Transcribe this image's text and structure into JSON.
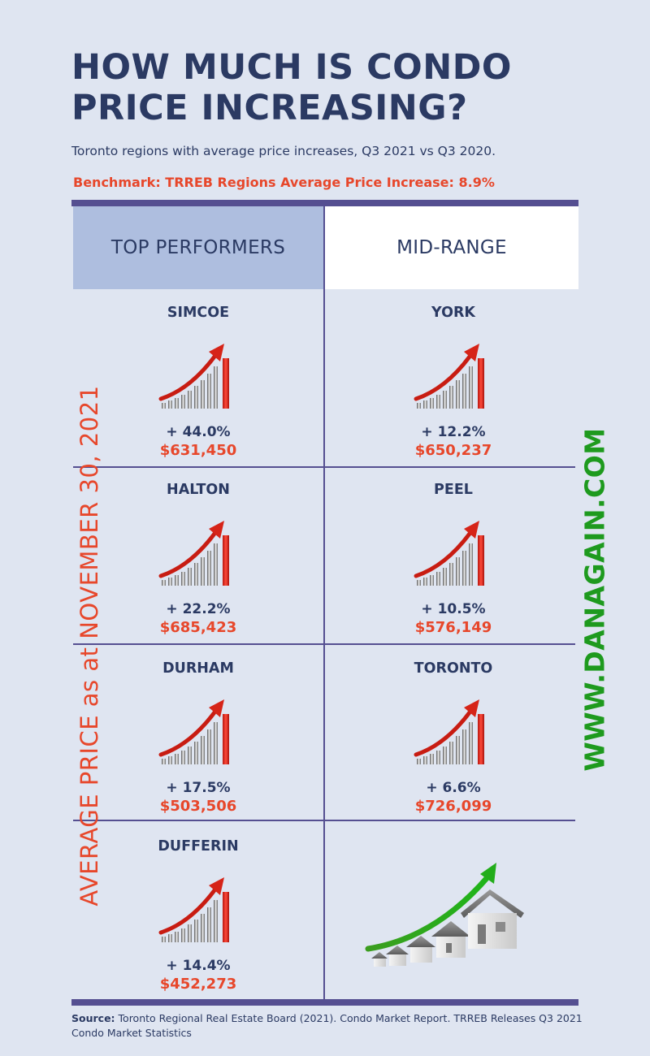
{
  "title": "HOW MUCH IS CONDO PRICE INCREASING?",
  "subtitle": "Toronto regions with average price increases, Q3 2021 vs Q3 2020.",
  "benchmark": "Benchmark: TRREB Regions Average Price Increase: 8.9%",
  "columns": {
    "left": "TOP PERFORMERS",
    "right": "MID-RANGE"
  },
  "side_label": "AVERAGE PRICE as at NOVEMBER 30, 2021",
  "website": "WWW.DANAGAIN.COM",
  "top_performers": [
    {
      "region": "SIMCOE",
      "change": "+ 44.0%",
      "price": "$631,450"
    },
    {
      "region": "HALTON",
      "change": "+ 22.2%",
      "price": "$685,423"
    },
    {
      "region": "DURHAM",
      "change": "+ 17.5%",
      "price": "$503,506"
    },
    {
      "region": "DUFFERIN",
      "change": "+ 14.4%",
      "price": "$452,273"
    }
  ],
  "mid_range": [
    {
      "region": "YORK",
      "change": "+ 12.2%",
      "price": "$650,237"
    },
    {
      "region": "PEEL",
      "change": "+ 10.5%",
      "price": "$576,149"
    },
    {
      "region": "TORONTO",
      "change": "+ 6.6%",
      "price": "$726,099"
    }
  ],
  "source_label": "Source:",
  "source_text": "Toronto Regional Real Estate Board (2021). Condo Market Report. TRREB Releases Q3 2021 Condo Market Statistics",
  "icons": {
    "growth": "bar-growth-arrow-icon",
    "houses": "houses-growth-arrow-icon"
  },
  "colors": {
    "navy": "#2b3a63",
    "accent": "#e7472b",
    "green": "#1e9a1e",
    "divider": "#554f91",
    "header_fill": "#aebedf"
  }
}
